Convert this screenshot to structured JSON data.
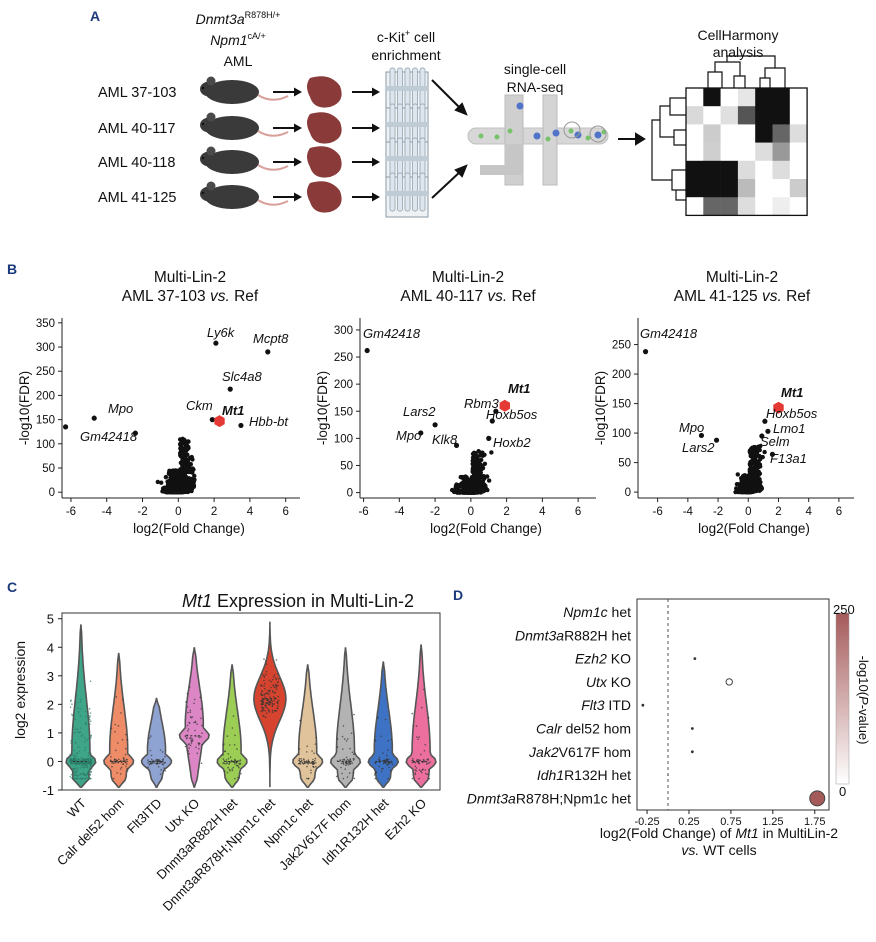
{
  "panels": {
    "A": "A",
    "B": "B",
    "C": "C",
    "D": "D"
  },
  "panel_a": {
    "genotype": {
      "line1_gene": "Dnmt3a",
      "line1_sup": "R878H/+",
      "line2_gene": "Npm1",
      "line2_sup": "cA/+",
      "line3": "AML"
    },
    "samples": [
      "AML 37-103",
      "AML 40-117",
      "AML 40-118",
      "AML 41-125"
    ],
    "enrichment": {
      "line1_a": "c-Kit",
      "line1_sup": "+",
      "line1_b": " cell",
      "line2": "enrichment"
    },
    "rnaseq": {
      "line1": "single-cell",
      "line2": "RNA-seq"
    },
    "cellharmony": {
      "line1": "CellHarmony",
      "line2": "analysis"
    },
    "heatmap_shades": [
      [
        "#ffffff",
        "#111111",
        "#ffffff",
        "#e6e6e6",
        "#111111",
        "#111111",
        "#ffffff"
      ],
      [
        "#d9d9d9",
        "#ffffff",
        "#e0e0e0",
        "#555555",
        "#111111",
        "#111111",
        "#ffffff"
      ],
      [
        "#ffffff",
        "#cccccc",
        "#ffffff",
        "#ffffff",
        "#111111",
        "#666666",
        "#dddddd"
      ],
      [
        "#ffffff",
        "#cfcfcf",
        "#ffffff",
        "#ffffff",
        "#dddddd",
        "#999999",
        "#ffffff"
      ],
      [
        "#111111",
        "#111111",
        "#111111",
        "#dcdcdc",
        "#ffffff",
        "#dddddd",
        "#ffffff"
      ],
      [
        "#111111",
        "#111111",
        "#111111",
        "#bbbbbb",
        "#ffffff",
        "#ffffff",
        "#cccccc"
      ],
      [
        "#ffffff",
        "#666666",
        "#666666",
        "#dddddd",
        "#ffffff",
        "#eeeeee",
        "#ffffff"
      ]
    ]
  },
  "panel_b": {
    "x_label": "log2(Fold Change)",
    "y_label": "-log10(FDR)",
    "plots": [
      {
        "title1": "Multi-Lin-2",
        "title2_a": "AML 37-103 ",
        "title2_vs": "vs.",
        "title2_b": " Ref",
        "xlim": [
          -6.5,
          6.8
        ],
        "ylim": [
          -12,
          360
        ],
        "xticks": [
          -6,
          -4,
          -2,
          0,
          2,
          4,
          6
        ],
        "yticks": [
          0,
          50,
          100,
          150,
          200,
          250,
          300,
          350
        ],
        "labeled": [
          {
            "gene": "Ly6k",
            "x": 2.1,
            "y": 308
          },
          {
            "gene": "Mcpt8",
            "x": 5.0,
            "y": 290
          },
          {
            "gene": "Slc4a8",
            "x": 2.9,
            "y": 213
          },
          {
            "gene": "Ckm",
            "x": 1.9,
            "y": 150
          },
          {
            "gene": "Mt1",
            "x": 2.3,
            "y": 147,
            "highlight": true
          },
          {
            "gene": "Hbb-bt",
            "x": 3.5,
            "y": 138
          },
          {
            "gene": "Mpo",
            "x": -4.7,
            "y": 153
          },
          {
            "gene": "Gm42418",
            "x": -6.3,
            "y": 135
          },
          {
            "gene": "",
            "x": -2.4,
            "y": 122
          }
        ]
      },
      {
        "title1": "Multi-Lin-2",
        "title2_a": "AML 40-117 ",
        "title2_vs": "vs.",
        "title2_b": " Ref",
        "xlim": [
          -6.2,
          7.0
        ],
        "ylim": [
          -10,
          322
        ],
        "xticks": [
          -6,
          -4,
          -2,
          0,
          2,
          4,
          6
        ],
        "yticks": [
          0,
          50,
          100,
          150,
          200,
          250,
          300
        ],
        "labeled": [
          {
            "gene": "Gm42418",
            "x": -5.8,
            "y": 262
          },
          {
            "gene": "Mt1",
            "x": 1.9,
            "y": 160,
            "highlight": true
          },
          {
            "gene": "Rbm3",
            "x": 1.4,
            "y": 150
          },
          {
            "gene": "Hoxb5os",
            "x": 1.2,
            "y": 132
          },
          {
            "gene": "Lars2",
            "x": -2.0,
            "y": 125
          },
          {
            "gene": "Mpo",
            "x": -2.8,
            "y": 110
          },
          {
            "gene": "Klk8",
            "x": -0.8,
            "y": 87
          },
          {
            "gene": "Hoxb2",
            "x": 1.0,
            "y": 100
          }
        ]
      },
      {
        "title1": "Multi-Lin-2",
        "title2_a": "AML 41-125 ",
        "title2_vs": "vs.",
        "title2_b": " Ref",
        "xlim": [
          -7.3,
          7.0
        ],
        "ylim": [
          -10,
          295
        ],
        "xticks": [
          -6,
          -4,
          -2,
          0,
          2,
          4,
          6
        ],
        "yticks": [
          0,
          50,
          100,
          150,
          200,
          250
        ],
        "labeled": [
          {
            "gene": "Gm42418",
            "x": -6.8,
            "y": 238
          },
          {
            "gene": "Mt1",
            "x": 2.0,
            "y": 143,
            "highlight": true
          },
          {
            "gene": "Hoxb5os",
            "x": 1.1,
            "y": 120
          },
          {
            "gene": "Lmo1",
            "x": 1.3,
            "y": 103
          },
          {
            "gene": "Selm",
            "x": 0.9,
            "y": 95
          },
          {
            "gene": "F13a1",
            "x": 1.6,
            "y": 64
          },
          {
            "gene": "Mpo",
            "x": -3.1,
            "y": 96
          },
          {
            "gene": "Lars2",
            "x": -2.1,
            "y": 88
          }
        ]
      }
    ]
  },
  "panel_c": {
    "title_gene": "Mt1",
    "title_rest": " Expression in Multi-Lin-2",
    "y_label": "log2 expression",
    "ylim": [
      -1,
      5.2
    ],
    "yticks": [
      -1,
      0,
      1,
      2,
      3,
      4,
      5
    ],
    "groups": [
      {
        "name": "WT",
        "color": "#3fa589",
        "max": 4.8,
        "median": 0.0,
        "dense": true
      },
      {
        "name": "Calr del52 hom",
        "color": "#ef8c68",
        "max": 3.8,
        "median": 0.0
      },
      {
        "name": "Flt3ITD",
        "color": "#8fa3d3",
        "max": 2.2,
        "median": 0.0
      },
      {
        "name": "Utx KO",
        "color": "#dd86c5",
        "max": 4.0,
        "median": 0.9
      },
      {
        "name": "Dnmt3aR882H het",
        "color": "#9ccd55",
        "max": 3.4,
        "median": 0.0
      },
      {
        "name": "Dnmt3aR878H;Npm1c het",
        "color": "#d6432e",
        "max": 4.9,
        "median": 2.2
      },
      {
        "name": "Npm1c het",
        "color": "#e0c39a",
        "max": 3.4,
        "median": 0.0
      },
      {
        "name": "Jak2V617F hom",
        "color": "#b3b3b3",
        "max": 4.0,
        "median": 0.0
      },
      {
        "name": "Idh1R132H het",
        "color": "#3e72c4",
        "max": 3.5,
        "median": 0.0
      },
      {
        "name": "Ezh2 KO",
        "color": "#ec6f9d",
        "max": 4.1,
        "median": 0.0
      }
    ]
  },
  "panel_d": {
    "xlim": [
      -0.37,
      1.92
    ],
    "xticks": [
      "-0.25",
      "0.25",
      "0.75",
      "1.25",
      "1.75"
    ],
    "xtick_values": [
      -0.25,
      0.25,
      0.75,
      1.25,
      1.75
    ],
    "xlabel_a": "log2(Fold Change) of ",
    "xlabel_gene": "Mt1",
    "xlabel_b": " in MultiLin-2",
    "xlabel2_vs": "vs.",
    "xlabel2_b": " WT cells",
    "colorbar_label_a": "-log10(",
    "colorbar_label_p": "P",
    "colorbar_label_b": "-value)",
    "colorbar_max": "250",
    "colorbar_min": "0",
    "colorbar_top_color": "#a55a5a",
    "rows": [
      {
        "gene": "Npm1c",
        "rest": " het",
        "x": 0.0,
        "size": 0.6,
        "p": 2
      },
      {
        "gene": "Dnmt3a",
        "rest": "R882H het",
        "x": 0.0,
        "size": 0.6,
        "p": 2
      },
      {
        "gene": "Ezh2",
        "rest": " KO",
        "x": 0.32,
        "size": 1.4,
        "p": 5
      },
      {
        "gene": "Utx",
        "rest": " KO",
        "x": 0.73,
        "size": 3.2,
        "p": 20
      },
      {
        "gene": "Flt3",
        "rest": " ITD",
        "x": -0.3,
        "size": 1.4,
        "p": 5
      },
      {
        "gene": "Calr",
        "rest": " del52 hom",
        "x": 0.29,
        "size": 1.4,
        "p": 5
      },
      {
        "gene": "Jak2",
        "rest": "V617F hom",
        "x": 0.29,
        "size": 1.4,
        "p": 5
      },
      {
        "gene": "Idh1",
        "rest": "R132H het",
        "x": 0.0,
        "size": 0.6,
        "p": 2
      },
      {
        "gene": "Dnmt3a",
        "rest": "R878H;Npm1c het",
        "x": 1.78,
        "size": 7.5,
        "p": 240
      }
    ]
  }
}
